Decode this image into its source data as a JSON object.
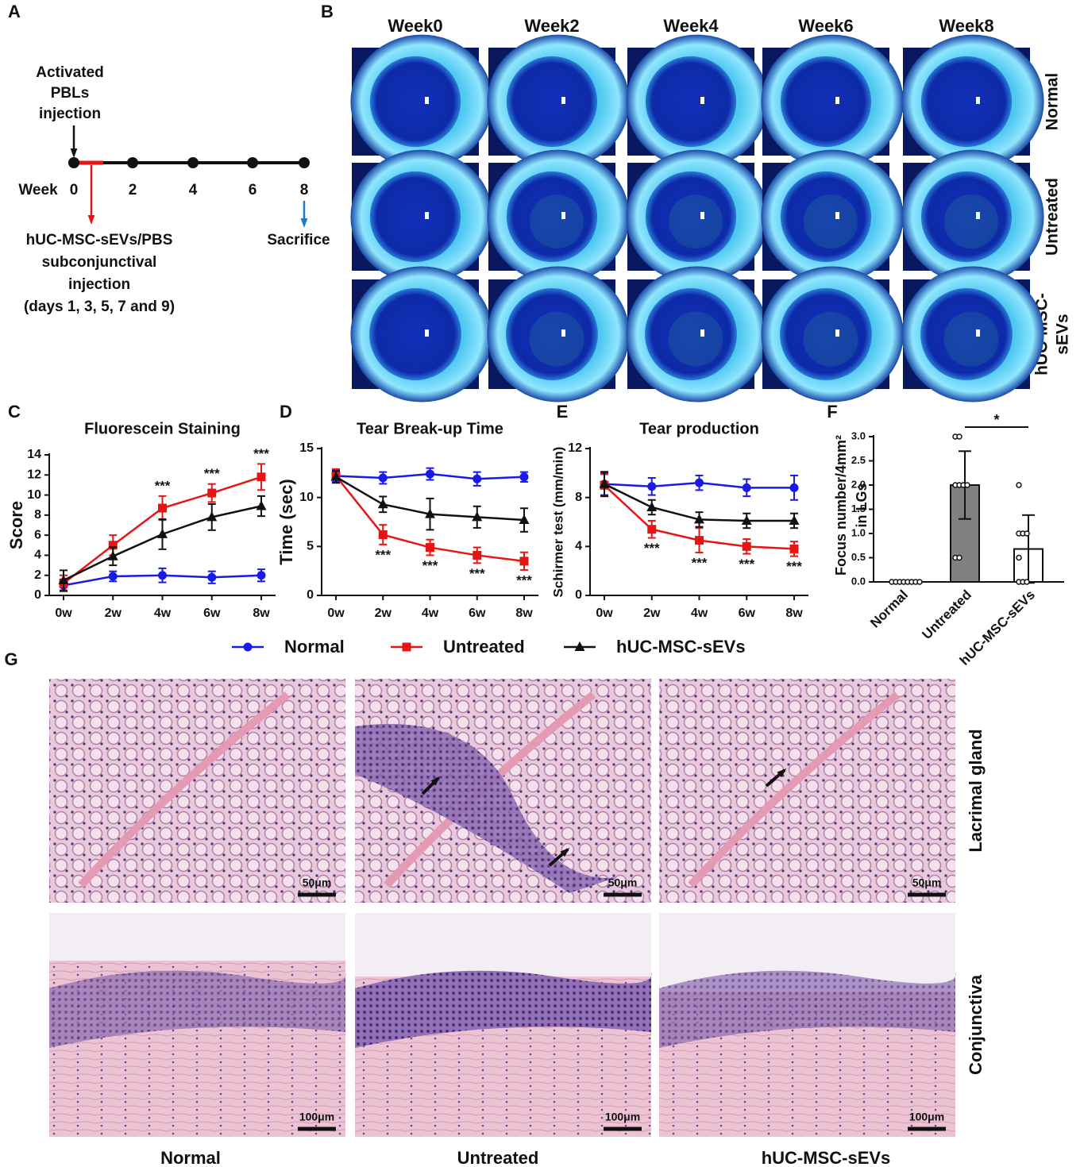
{
  "panel_a": {
    "label": "A",
    "event_lines": [
      "Activated",
      "PBLs",
      "injection"
    ],
    "axis_label": "Week",
    "weeks": [
      "0",
      "2",
      "4",
      "6",
      "8"
    ],
    "treatment_lines": [
      "hUC-MSC-sEVs/PBS",
      "subconjunctival",
      "injection",
      "(days 1, 3, 5, 7 and 9)"
    ],
    "endpoint": "Sacrifice"
  },
  "panel_b": {
    "label": "B",
    "columns": [
      "Week0",
      "Week2",
      "Week4",
      "Week6",
      "Week8"
    ],
    "rows": [
      [
        "Normal"
      ],
      [
        "Untreated"
      ],
      [
        "hUC-MSC-",
        "sEVs"
      ]
    ]
  },
  "chart_data": [
    {
      "label": "C",
      "type": "line",
      "title": "Fluorescein Staining",
      "ylabel": "Score",
      "categories": [
        "0w",
        "2w",
        "4w",
        "6w",
        "8w"
      ],
      "ylim": [
        0,
        14
      ],
      "yticks": [
        0,
        2,
        4,
        6,
        8,
        10,
        12,
        14
      ],
      "annotations": [
        null,
        null,
        "***",
        "***",
        "***"
      ],
      "annotation_position": "above",
      "series": [
        {
          "name": "Normal",
          "color": "#1a1ae6",
          "marker": "circle",
          "values": [
            1.0,
            1.9,
            2.0,
            1.8,
            2.0
          ],
          "errors": [
            0.6,
            0.5,
            0.7,
            0.6,
            0.6
          ]
        },
        {
          "name": "Untreated",
          "color": "#e81414",
          "marker": "square",
          "values": [
            1.2,
            5.0,
            8.7,
            10.2,
            11.8
          ],
          "errors": [
            0.8,
            1.0,
            1.2,
            0.9,
            1.3
          ]
        },
        {
          "name": "hUC-MSC-sEVs",
          "color": "#111111",
          "marker": "triangle",
          "values": [
            1.5,
            3.9,
            6.1,
            7.8,
            8.9
          ],
          "errors": [
            1.0,
            0.9,
            1.5,
            1.3,
            1.0
          ]
        }
      ]
    },
    {
      "label": "D",
      "type": "line",
      "title": "Tear Break-up Time",
      "ylabel": "Time (sec)",
      "categories": [
        "0w",
        "2w",
        "4w",
        "6w",
        "8w"
      ],
      "ylim": [
        0,
        15
      ],
      "yticks": [
        0,
        5,
        10,
        15
      ],
      "annotations": [
        null,
        "***",
        "***",
        "***",
        "***"
      ],
      "annotation_position": "below",
      "series": [
        {
          "color": "#1a1ae6",
          "marker": "circle",
          "values": [
            12.2,
            12.0,
            12.4,
            11.9,
            12.1
          ],
          "errors": [
            0.6,
            0.6,
            0.6,
            0.7,
            0.5
          ]
        },
        {
          "color": "#e81414",
          "marker": "square",
          "values": [
            12.2,
            6.2,
            4.9,
            4.1,
            3.5
          ],
          "errors": [
            0.7,
            1.0,
            0.8,
            0.8,
            0.9
          ]
        },
        {
          "color": "#111111",
          "marker": "triangle",
          "values": [
            12.1,
            9.3,
            8.3,
            8.0,
            7.7
          ],
          "errors": [
            0.6,
            0.8,
            1.6,
            1.1,
            1.2
          ]
        }
      ]
    },
    {
      "label": "E",
      "type": "line",
      "title": "Tear production",
      "ylabel": "Schirmer test (mm/min)",
      "categories": [
        "0w",
        "2w",
        "4w",
        "6w",
        "8w"
      ],
      "ylim": [
        0,
        12
      ],
      "yticks": [
        0,
        4,
        8,
        12
      ],
      "annotations": [
        null,
        "***",
        "***",
        "***",
        "***"
      ],
      "annotation_position": "below",
      "series": [
        {
          "color": "#1a1ae6",
          "marker": "circle",
          "values": [
            9.1,
            8.9,
            9.2,
            8.8,
            8.8
          ],
          "errors": [
            0.9,
            0.7,
            0.6,
            0.7,
            1.0
          ]
        },
        {
          "color": "#e81414",
          "marker": "square",
          "values": [
            9.0,
            5.4,
            4.5,
            4.0,
            3.8
          ],
          "errors": [
            0.9,
            0.7,
            1.0,
            0.6,
            0.6
          ]
        },
        {
          "color": "#111111",
          "marker": "triangle",
          "values": [
            9.1,
            7.2,
            6.2,
            6.1,
            6.1
          ],
          "errors": [
            1.0,
            0.6,
            0.6,
            0.6,
            0.6
          ]
        }
      ]
    },
    {
      "label": "F",
      "type": "bar",
      "ylabel_lines": [
        "Focus number/4mm²",
        "in LGs"
      ],
      "categories": [
        "Normal",
        "Untreated",
        "hUC-MSC-sEVs"
      ],
      "values": [
        0,
        2.0,
        0.68
      ],
      "errors": [
        0,
        0.7,
        0.7
      ],
      "colors": [
        "#ffffff",
        "#808080",
        "#ffffff"
      ],
      "points": [
        [
          0,
          0,
          0,
          0,
          0,
          0,
          0,
          0
        ],
        [
          3,
          3,
          2,
          2,
          2,
          2,
          0.5,
          0.5
        ],
        [
          2,
          1,
          1,
          1,
          0.5,
          0,
          0,
          0
        ]
      ],
      "significance": "*",
      "ylim": [
        0,
        3
      ],
      "yticks": [
        {
          "value": 0,
          "label": "0.0"
        },
        {
          "value": 0.5,
          "label": "0.5"
        },
        {
          "value": 1,
          "label": "1.0"
        },
        {
          "value": 1.5,
          "label": "1.5"
        },
        {
          "value": 2,
          "label": "2.0"
        },
        {
          "value": 2.5,
          "label": "2.5"
        },
        {
          "value": 3,
          "label": "3.0"
        }
      ]
    }
  ],
  "panel_g": {
    "label": "G",
    "rows": [
      "Lacrimal gland",
      "Conjunctiva"
    ],
    "columns": [
      "Normal",
      "Untreated",
      "hUC-MSC-sEVs"
    ],
    "scale_bars": [
      [
        "50μm",
        "50μm",
        "50μm"
      ],
      [
        "100μm",
        "100μm",
        "100μm"
      ]
    ]
  }
}
